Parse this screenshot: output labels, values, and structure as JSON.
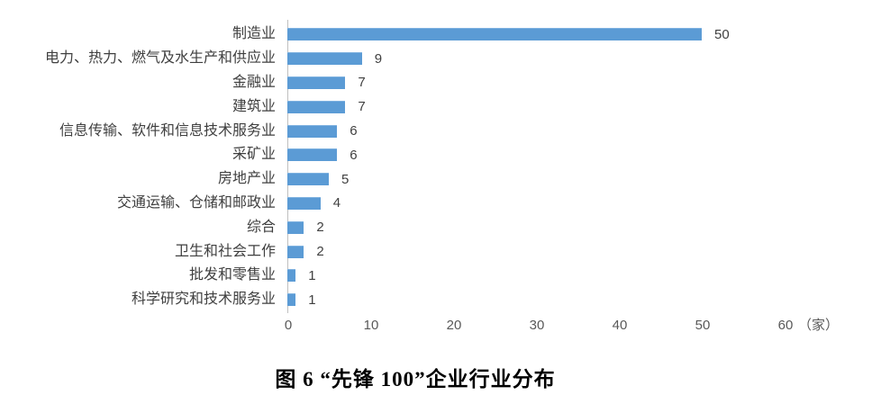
{
  "figure": {
    "caption": "图 6  “先锋 100”企业行业分布"
  },
  "chart_data": {
    "type": "bar",
    "orientation": "horizontal",
    "title": "图 6  “先锋 100”企业行业分布",
    "categories": [
      "制造业",
      "电力、热力、燃气及水生产和供应业",
      "金融业",
      "建筑业",
      "信息传输、软件和信息技术服务业",
      "采矿业",
      "房地产业",
      "交通运输、仓储和邮政业",
      "综合",
      "卫生和社会工作",
      "批发和零售业",
      "科学研究和技术服务业"
    ],
    "values": [
      50,
      9,
      7,
      7,
      6,
      6,
      5,
      4,
      2,
      2,
      1,
      1
    ],
    "xlabel": "",
    "ylabel": "",
    "x_unit": "（家）",
    "xlim": [
      0,
      60
    ],
    "x_ticks": [
      0,
      10,
      20,
      30,
      40,
      50,
      60
    ],
    "data_labels": true,
    "grid": false,
    "legend": "none",
    "colors": {
      "bar": "#5B9BD5",
      "axis_line": "#BFBFBF",
      "tick_text": "#595959",
      "category_text": "#3F3F3F",
      "value_text": "#404040",
      "title_text": "#000000"
    }
  }
}
